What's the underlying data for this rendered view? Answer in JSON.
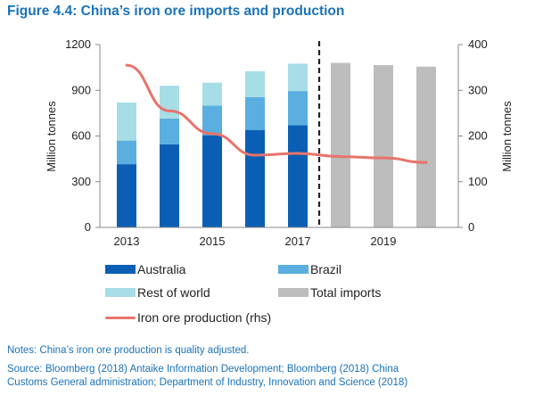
{
  "title": "Figure 4.4: China’s iron ore imports and production",
  "chart_data": {
    "type": "bar",
    "stacked": true,
    "x_tick_labels": [
      "2013",
      "2015",
      "2017",
      "2019"
    ],
    "categories": [
      "2013",
      "2014",
      "2015",
      "2016",
      "2017",
      "2018",
      "2019",
      "2020"
    ],
    "ylabel": "Million tonnes",
    "y2label": "Million tonnes",
    "ylim": [
      0,
      1200
    ],
    "y2lim": [
      0,
      400
    ],
    "yticks": [
      "0",
      "300",
      "600",
      "900",
      "1200"
    ],
    "y2ticks": [
      "0",
      "100",
      "200",
      "300",
      "400"
    ],
    "forecast_divider_after": "2017",
    "series": [
      {
        "name": "Australia",
        "color": "#0a5fb4",
        "axis": "left",
        "values": [
          415,
          545,
          605,
          640,
          670,
          null,
          null,
          null
        ]
      },
      {
        "name": "Brazil",
        "color": "#5aafe0",
        "axis": "left",
        "values": [
          155,
          170,
          195,
          215,
          225,
          null,
          null,
          null
        ]
      },
      {
        "name": "Rest of world",
        "color": "#a6dde6",
        "axis": "left",
        "values": [
          250,
          215,
          150,
          170,
          180,
          null,
          null,
          null
        ]
      },
      {
        "name": "Total imports",
        "color": "#bdbdbd",
        "axis": "left",
        "values": [
          null,
          null,
          null,
          null,
          null,
          1080,
          1065,
          1055
        ]
      },
      {
        "name": "Iron ore production (rhs)",
        "color": "#e8736b",
        "axis": "right",
        "type": "line",
        "values": [
          355,
          255,
          205,
          158,
          162,
          155,
          152,
          142
        ]
      }
    ],
    "grid": false,
    "legend_position": "bottom"
  },
  "legend": {
    "australia": "Australia",
    "brazil": "Brazil",
    "rest": "Rest of world",
    "total": "Total imports",
    "production": "Iron ore production (rhs)"
  },
  "notes": {
    "line1": "Notes: China’s iron ore production is quality adjusted.",
    "line2": "Source: Bloomberg (2018) Antaike Information Development; Bloomberg (2018) China",
    "line3": "Customs General administration; Department of Industry, Innovation and Science (2018)"
  }
}
